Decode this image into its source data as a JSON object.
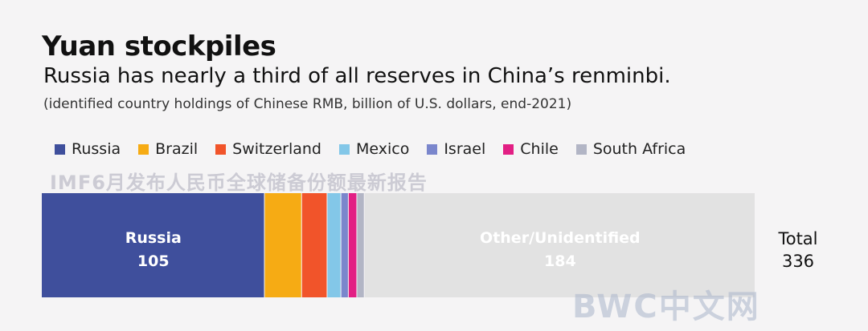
{
  "header": {
    "title": "Yuan stockpiles",
    "subtitle": "Russia has nearly a third of all reserves in China’s renminbi.",
    "note": "(identified country holdings of Chinese RMB, billion of U.S. dollars, end-2021)"
  },
  "watermarks": {
    "top": "IMF6月发布人民币全球储备份额最新报告",
    "bottom": "BWC中文网"
  },
  "total": {
    "label": "Total",
    "value": "336"
  },
  "chart_data": {
    "type": "bar",
    "orientation": "horizontal-stacked",
    "title": "Yuan stockpiles",
    "unit": "billion of U.S. dollars",
    "total": 336,
    "series": [
      {
        "name": "Russia",
        "value": 105,
        "color": "#3f4f9c",
        "label": "105",
        "show_label": true
      },
      {
        "name": "Brazil",
        "value": 17.5,
        "color": "#f6ab14"
      },
      {
        "name": "Switzerland",
        "value": 12,
        "color": "#f1542a"
      },
      {
        "name": "Mexico",
        "value": 6.5,
        "color": "#83c7e8"
      },
      {
        "name": "Israel",
        "value": 3.5,
        "color": "#7a86cc"
      },
      {
        "name": "Chile",
        "value": 4,
        "color": "#e21f84"
      },
      {
        "name": "South Africa",
        "value": 3.5,
        "color": "#b2b5c5"
      },
      {
        "name": "Other/Unidentified",
        "value": 184,
        "color": "#e2e2e2",
        "label": "184",
        "show_label": true,
        "in_legend": false
      }
    ]
  }
}
